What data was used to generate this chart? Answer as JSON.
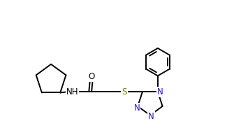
{
  "bg_color": "#ffffff",
  "bond_color": "#000000",
  "lw": 1.4,
  "figsize": [
    3.35,
    1.93
  ],
  "dpi": 100,
  "xlim": [
    -0.3,
    9.5
  ],
  "ylim": [
    -2.8,
    4.2
  ],
  "N_color": "#1a1aee",
  "S_color": "#7a7a00",
  "O_color": "#000000"
}
